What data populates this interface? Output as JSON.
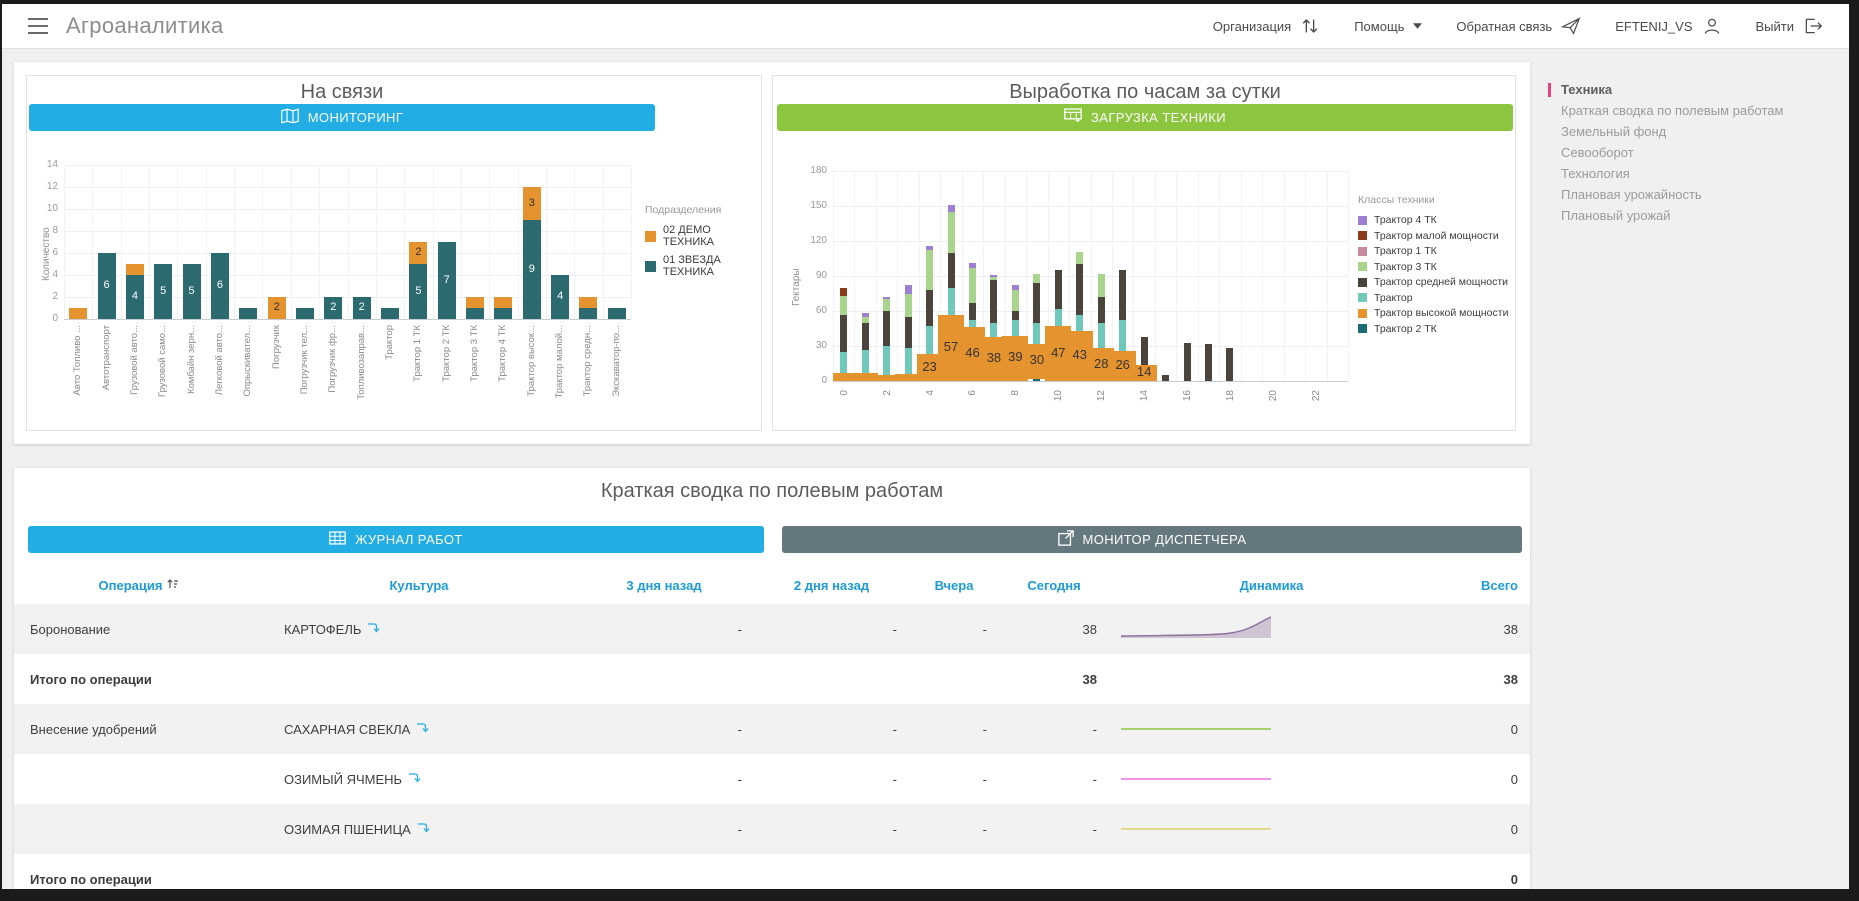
{
  "window": {
    "title": "Агроаналитика"
  },
  "header": {
    "items": [
      {
        "label": "Организация",
        "icon": "sync-arrows-icon"
      },
      {
        "label": "Помощь",
        "icon": "chevron-down-icon"
      },
      {
        "label": "Обратная связь",
        "icon": "paper-plane-icon"
      },
      {
        "label": "EFTENIJ_VS",
        "icon": "user-icon"
      },
      {
        "label": "Выйти",
        "icon": "logout-icon"
      }
    ]
  },
  "sidebar": {
    "accent_color": "#e8437c",
    "items": [
      {
        "label": "Техника",
        "active": true
      },
      {
        "label": "Краткая сводка по полевым работам",
        "active": false
      },
      {
        "label": "Земельный фонд",
        "active": false
      },
      {
        "label": "Севооборот",
        "active": false
      },
      {
        "label": "Технология",
        "active": false
      },
      {
        "label": "Плановая урожайность",
        "active": false
      },
      {
        "label": "Плановый урожай",
        "active": false
      }
    ]
  },
  "chart_data": [
    {
      "type": "bar",
      "stacked": true,
      "title": "На связи",
      "button": {
        "label": "МОНИТОРИНГ",
        "icon": "map-icon",
        "color": "#22ade4"
      },
      "ylabel": "Количество",
      "ylim": [
        0,
        14
      ],
      "yticks": [
        0,
        2,
        4,
        6,
        8,
        10,
        12,
        14
      ],
      "grid": true,
      "legend_position": "right",
      "legend_title": "Подразделения",
      "categories": [
        "Авто Топливо ...",
        "Автотранспорт",
        "Грузовой авто...",
        "Грузовой само...",
        "Комбайн зерн...",
        "Легковой авто...",
        "Опрыскивател...",
        "Погрузчик",
        "Погрузчик тел...",
        "Погрузчик фр...",
        "Топливозаправ...",
        "Трактор",
        "Трактор 1 ТК",
        "Трактор 2 ТК",
        "Трактор 3 ТК",
        "Трактор 4 ТК",
        "Трактор высок...",
        "Трактор малой...",
        "Трактор средн...",
        "Экскаватор-по..."
      ],
      "series": [
        {
          "name": "02 ДЕМО ТЕХНИКА",
          "color": "#e5932e",
          "values": [
            1,
            0,
            1,
            0,
            0,
            0,
            0,
            2,
            0,
            0,
            0,
            0,
            2,
            0,
            1,
            1,
            3,
            0,
            1,
            0
          ]
        },
        {
          "name": "01 ЗВЕЗДА ТЕХНИКА",
          "color": "#2b6a6e",
          "values": [
            0,
            6,
            4,
            5,
            5,
            6,
            1,
            0,
            1,
            2,
            2,
            1,
            5,
            7,
            1,
            1,
            9,
            4,
            1,
            1
          ]
        }
      ]
    },
    {
      "type": "bar",
      "stacked": true,
      "title": "Выработка по часам за сутки",
      "button": {
        "label": "ЗАГРУЗКА ТЕХНИКИ",
        "icon": "machine-grid-icon",
        "color": "#8cc63f"
      },
      "ylabel": "Гектары",
      "ylim": [
        0,
        180
      ],
      "yticks": [
        0,
        30,
        60,
        90,
        120,
        150,
        180
      ],
      "xticks": [
        0,
        2,
        4,
        6,
        8,
        10,
        12,
        14,
        16,
        18,
        20,
        22
      ],
      "grid": true,
      "legend_position": "right",
      "legend_title": "Классы техники",
      "legend": [
        {
          "key": "tk4",
          "name": "Трактор 4 ТК",
          "color": "#9d7fd3"
        },
        {
          "key": "mal",
          "name": "Трактор малой мощности",
          "color": "#8a3c1d"
        },
        {
          "key": "tk1",
          "name": "Трактор 1 ТК",
          "color": "#c7899c"
        },
        {
          "key": "tk3",
          "name": "Трактор 3 ТК",
          "color": "#a9d48b"
        },
        {
          "key": "sred",
          "name": "Трактор средней мощности",
          "color": "#4a443c"
        },
        {
          "key": "tr",
          "name": "Трактор",
          "color": "#6fc8ba"
        },
        {
          "key": "vys",
          "name": "Трактор высокой мощности",
          "color": "#e5932e"
        },
        {
          "key": "tk2",
          "name": "Трактор 2 ТК",
          "color": "#1c6a72"
        }
      ],
      "hours": [
        {
          "hour": 0,
          "segments": [
            [
              "vys",
              7
            ],
            [
              "tr",
              18
            ],
            [
              "sred",
              32
            ],
            [
              "tk3",
              16
            ],
            [
              "mal",
              7
            ]
          ]
        },
        {
          "hour": 1,
          "segments": [
            [
              "vys",
              7
            ],
            [
              "tr",
              20
            ],
            [
              "sred",
              23
            ],
            [
              "tk3",
              5
            ],
            [
              "tk4",
              3
            ]
          ]
        },
        {
          "hour": 2,
          "segments": [
            [
              "vys",
              5
            ],
            [
              "tr",
              25
            ],
            [
              "sred",
              30
            ],
            [
              "tk3",
              10
            ],
            [
              "tk4",
              2
            ]
          ]
        },
        {
          "hour": 3,
          "segments": [
            [
              "vys",
              6
            ],
            [
              "tr",
              22
            ],
            [
              "sred",
              27
            ],
            [
              "tk3",
              20
            ],
            [
              "tk4",
              7
            ]
          ]
        },
        {
          "hour": 4,
          "segments": [
            [
              "vys",
              23
            ],
            [
              "tr",
              24
            ],
            [
              "sred",
              31
            ],
            [
              "tk3",
              34
            ],
            [
              "tk4",
              4
            ]
          ]
        },
        {
          "hour": 5,
          "segments": [
            [
              "vys",
              57
            ],
            [
              "tr",
              23
            ],
            [
              "sred",
              30
            ],
            [
              "tk3",
              35
            ],
            [
              "tk4",
              6
            ]
          ]
        },
        {
          "hour": 6,
          "segments": [
            [
              "vys",
              46
            ],
            [
              "tr",
              6
            ],
            [
              "sred",
              15
            ],
            [
              "tk3",
              30
            ],
            [
              "tk4",
              4
            ]
          ]
        },
        {
          "hour": 7,
          "segments": [
            [
              "vys",
              38
            ],
            [
              "tr",
              12
            ],
            [
              "sred",
              37
            ],
            [
              "tk3",
              2
            ],
            [
              "tk4",
              2
            ]
          ]
        },
        {
          "hour": 8,
          "segments": [
            [
              "vys",
              39
            ],
            [
              "tr",
              13
            ],
            [
              "sred",
              8
            ],
            [
              "tk3",
              18
            ],
            [
              "tk4",
              4
            ]
          ]
        },
        {
          "hour": 9,
          "segments": [
            [
              "tk2",
              2
            ],
            [
              "vys",
              30
            ],
            [
              "tr",
              18
            ],
            [
              "sred",
              34
            ],
            [
              "tk3",
              8
            ]
          ]
        },
        {
          "hour": 10,
          "segments": [
            [
              "vys",
              47
            ],
            [
              "tr",
              15
            ],
            [
              "sred",
              33
            ]
          ]
        },
        {
          "hour": 11,
          "segments": [
            [
              "vys",
              43
            ],
            [
              "tr",
              14
            ],
            [
              "sred",
              43
            ],
            [
              "tk3",
              11
            ]
          ]
        },
        {
          "hour": 12,
          "segments": [
            [
              "vys",
              28
            ],
            [
              "tr",
              22
            ],
            [
              "sred",
              22
            ],
            [
              "tk3",
              20
            ]
          ]
        },
        {
          "hour": 13,
          "segments": [
            [
              "vys",
              26
            ],
            [
              "tr",
              26
            ],
            [
              "sred",
              43
            ]
          ]
        },
        {
          "hour": 14,
          "segments": [
            [
              "vys",
              14
            ],
            [
              "sred",
              24
            ]
          ]
        },
        {
          "hour": 15,
          "segments": [
            [
              "sred",
              5
            ]
          ]
        },
        {
          "hour": 16,
          "segments": [
            [
              "sred",
              33
            ]
          ]
        },
        {
          "hour": 17,
          "segments": [
            [
              "sred",
              32
            ]
          ]
        },
        {
          "hour": 18,
          "segments": [
            [
              "sred",
              28
            ]
          ]
        },
        {
          "hour": 19,
          "segments": []
        },
        {
          "hour": 20,
          "segments": []
        },
        {
          "hour": 21,
          "segments": []
        },
        {
          "hour": 22,
          "segments": []
        },
        {
          "hour": 23,
          "segments": []
        }
      ]
    }
  ],
  "summary_table": {
    "title": "Краткая сводка по полевым работам",
    "buttons": [
      {
        "label": "ЖУРНАЛ РАБОТ",
        "icon": "table-grid-icon",
        "color": "#22ade4"
      },
      {
        "label": "МОНИТОР ДИСПЕТЧЕРА",
        "icon": "external-link-icon",
        "color": "#66787f"
      }
    ],
    "columns": [
      "Операция",
      "Культура",
      "3 дня назад",
      "2 дня назад",
      "Вчера",
      "Сегодня",
      "Динамика",
      "Всего"
    ],
    "rows": [
      {
        "operation": "Боронование",
        "culture": "КАРТОФЕЛЬ",
        "d3": "-",
        "d2": "-",
        "yesterday": "-",
        "today": "38",
        "spark": "rise-purple",
        "total": "38",
        "subtotal": false
      },
      {
        "operation": "Итого по операции",
        "culture": "",
        "d3": "",
        "d2": "",
        "yesterday": "",
        "today": "38",
        "spark": "",
        "total": "38",
        "subtotal": true
      },
      {
        "operation": "Внесение удобрений",
        "culture": "САХАРНАЯ СВЕКЛА",
        "d3": "-",
        "d2": "-",
        "yesterday": "-",
        "today": "-",
        "spark": "flat-green",
        "total": "0",
        "subtotal": false
      },
      {
        "operation": "",
        "culture": "ОЗИМЫЙ ЯЧМЕНЬ",
        "d3": "-",
        "d2": "-",
        "yesterday": "-",
        "today": "-",
        "spark": "flat-pink",
        "total": "0",
        "subtotal": false
      },
      {
        "operation": "",
        "culture": "ОЗИМАЯ ПШЕНИЦА",
        "d3": "-",
        "d2": "-",
        "yesterday": "-",
        "today": "-",
        "spark": "flat-yellow",
        "total": "0",
        "subtotal": false
      },
      {
        "operation": "Итого по операции",
        "culture": "",
        "d3": "",
        "d2": "",
        "yesterday": "",
        "today": "",
        "spark": "",
        "total": "0",
        "subtotal": true
      }
    ],
    "spark_colors": {
      "rise-purple": "#8e6f9e",
      "flat-green": "#8ec641",
      "flat-pink": "#f06ee8",
      "flat-yellow": "#ddd06b"
    }
  }
}
